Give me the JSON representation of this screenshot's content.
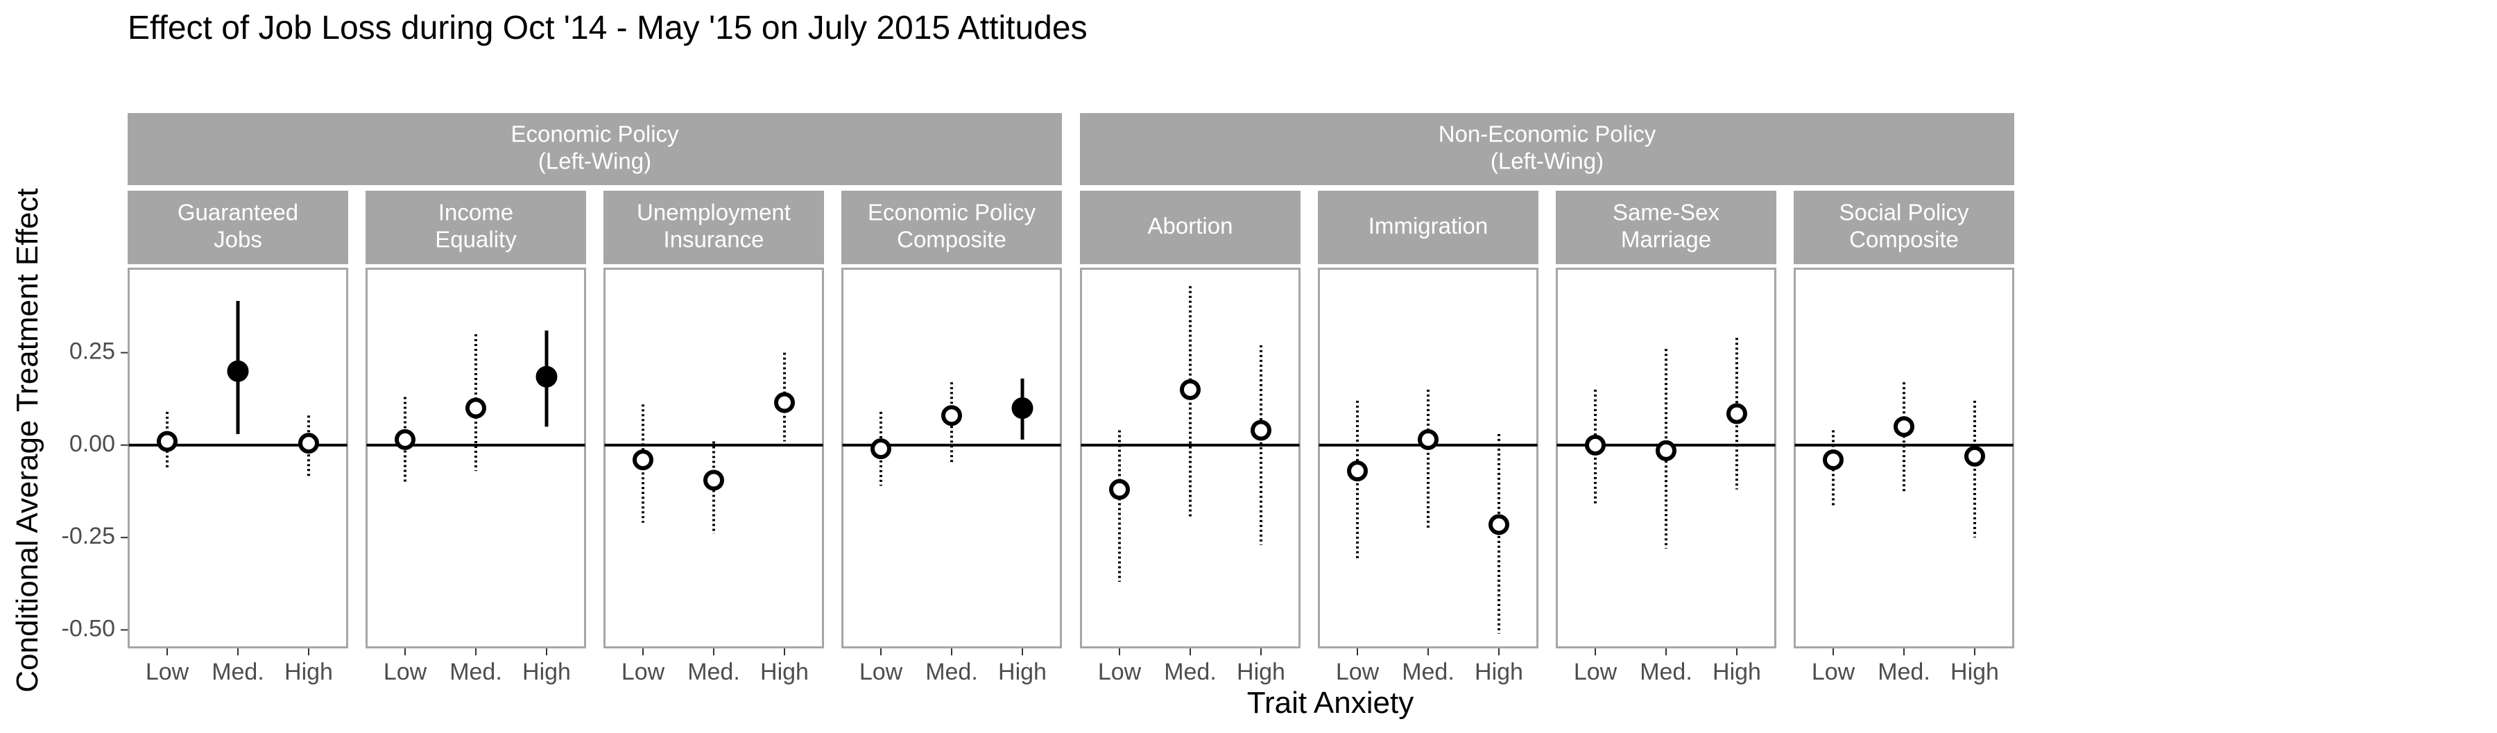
{
  "chart_data": {
    "type": "scatter",
    "title": "Effect of Job Loss during Oct '14 - May '15 on July 2015 Attitudes",
    "xlabel": "Trait Anxiety",
    "ylabel": "Conditional Average Treatment Effect",
    "categories": [
      "Low",
      "Med.",
      "High"
    ],
    "ylim": [
      -0.55,
      0.48
    ],
    "yticks": [
      {
        "value": 0.25,
        "label": "0.25"
      },
      {
        "value": 0.0,
        "label": "0.00"
      },
      {
        "value": -0.25,
        "label": "-0.25"
      },
      {
        "value": -0.5,
        "label": "-0.50"
      }
    ],
    "reference_line": 0,
    "grid": false,
    "groups": [
      {
        "label": "Economic Policy\n(Left-Wing)",
        "panels": [
          0,
          1,
          2,
          3
        ]
      },
      {
        "label": "Non-Economic Policy\n(Left-Wing)",
        "panels": [
          4,
          5,
          6,
          7
        ]
      }
    ],
    "panels": [
      {
        "label": "Guaranteed\nJobs",
        "points": [
          {
            "x": "Low",
            "y": 0.01,
            "lo": -0.06,
            "hi": 0.09,
            "significant": false
          },
          {
            "x": "Med.",
            "y": 0.2,
            "lo": 0.03,
            "hi": 0.39,
            "significant": true
          },
          {
            "x": "High",
            "y": 0.005,
            "lo": -0.09,
            "hi": 0.08,
            "significant": false
          }
        ]
      },
      {
        "label": "Income\nEquality",
        "points": [
          {
            "x": "Low",
            "y": 0.015,
            "lo": -0.1,
            "hi": 0.13,
            "significant": false
          },
          {
            "x": "Med.",
            "y": 0.1,
            "lo": -0.07,
            "hi": 0.3,
            "significant": false
          },
          {
            "x": "High",
            "y": 0.185,
            "lo": 0.05,
            "hi": 0.31,
            "significant": true
          }
        ]
      },
      {
        "label": "Unemployment\nInsurance",
        "points": [
          {
            "x": "Low",
            "y": -0.04,
            "lo": -0.21,
            "hi": 0.11,
            "significant": false
          },
          {
            "x": "Med.",
            "y": -0.095,
            "lo": -0.24,
            "hi": 0.01,
            "significant": false
          },
          {
            "x": "High",
            "y": 0.115,
            "lo": 0.01,
            "hi": 0.25,
            "significant": false
          }
        ]
      },
      {
        "label": "Economic Policy\nComposite",
        "points": [
          {
            "x": "Low",
            "y": -0.01,
            "lo": -0.11,
            "hi": 0.09,
            "significant": false
          },
          {
            "x": "Med.",
            "y": 0.08,
            "lo": -0.05,
            "hi": 0.17,
            "significant": false
          },
          {
            "x": "High",
            "y": 0.1,
            "lo": 0.015,
            "hi": 0.18,
            "significant": true
          }
        ]
      },
      {
        "label": "Abortion",
        "points": [
          {
            "x": "Low",
            "y": -0.12,
            "lo": -0.37,
            "hi": 0.04,
            "significant": false
          },
          {
            "x": "Med.",
            "y": 0.15,
            "lo": -0.2,
            "hi": 0.43,
            "significant": false
          },
          {
            "x": "High",
            "y": 0.04,
            "lo": -0.27,
            "hi": 0.27,
            "significant": false
          }
        ]
      },
      {
        "label": "Immigration",
        "points": [
          {
            "x": "Low",
            "y": -0.07,
            "lo": -0.31,
            "hi": 0.12,
            "significant": false
          },
          {
            "x": "Med.",
            "y": 0.015,
            "lo": -0.23,
            "hi": 0.15,
            "significant": false
          },
          {
            "x": "High",
            "y": -0.215,
            "lo": -0.51,
            "hi": 0.03,
            "significant": false
          }
        ]
      },
      {
        "label": "Same-Sex\nMarriage",
        "points": [
          {
            "x": "Low",
            "y": 0.0,
            "lo": -0.16,
            "hi": 0.15,
            "significant": false
          },
          {
            "x": "Med.",
            "y": -0.015,
            "lo": -0.28,
            "hi": 0.26,
            "significant": false
          },
          {
            "x": "High",
            "y": 0.085,
            "lo": -0.12,
            "hi": 0.29,
            "significant": false
          }
        ]
      },
      {
        "label": "Social Policy\nComposite",
        "points": [
          {
            "x": "Low",
            "y": -0.04,
            "lo": -0.17,
            "hi": 0.04,
            "significant": false
          },
          {
            "x": "Med.",
            "y": 0.05,
            "lo": -0.13,
            "hi": 0.17,
            "significant": false
          },
          {
            "x": "High",
            "y": -0.03,
            "lo": -0.25,
            "hi": 0.12,
            "significant": false
          }
        ]
      }
    ]
  },
  "colors": {
    "strip_fill": "#a6a6a6",
    "strip_text": "#ffffff",
    "panel_border": "#a6a6a6",
    "ink": "#000000",
    "tick_text": "#4d4d4d"
  }
}
